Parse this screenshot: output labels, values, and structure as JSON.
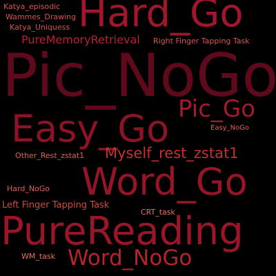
{
  "words": [
    {
      "id": "katya_episodic",
      "text": "Katya_episodic",
      "color": "#d9534f"
    },
    {
      "id": "wammes_drawing",
      "text": "Wammes_Drawing",
      "color": "#d9534f"
    },
    {
      "id": "katya_uniquess",
      "text": "Katya_Uniquess",
      "color": "#d9534f"
    },
    {
      "id": "hard_go",
      "text": "Hard_Go",
      "color": "#a0162d"
    },
    {
      "id": "pure_memory_retrieval",
      "text": "PureMemoryRetrieval",
      "color": "#b8202f"
    },
    {
      "id": "right_finger_tapping",
      "text": "Right Finger Tapping Task",
      "color": "#d9534f"
    },
    {
      "id": "pic_nogo",
      "text": "Pic_NoGo",
      "color": "#5e0a1c"
    },
    {
      "id": "pic_go",
      "text": "Pic_Go",
      "color": "#a51a2a"
    },
    {
      "id": "easy_go",
      "text": "Easy_Go",
      "color": "#8c1226"
    },
    {
      "id": "easy_nogo",
      "text": "Easy_NoGo",
      "color": "#e2604f"
    },
    {
      "id": "other_rest",
      "text": "Other_Rest_zstat1",
      "color": "#e2604f"
    },
    {
      "id": "myself_rest",
      "text": "Myself_rest_zstat1",
      "color": "#c53030"
    },
    {
      "id": "word_go",
      "text": "Word_Go",
      "color": "#961428"
    },
    {
      "id": "hard_nogo",
      "text": "Hard_NoGo",
      "color": "#e2604f"
    },
    {
      "id": "left_finger_tapping",
      "text": "Left Finger Tapping Task",
      "color": "#d04a3e"
    },
    {
      "id": "crt_task",
      "text": "CRT_task",
      "color": "#e87060"
    },
    {
      "id": "pure_reading",
      "text": "PureReading",
      "color": "#9a1528"
    },
    {
      "id": "wm_task",
      "text": "WM_task",
      "color": "#e87060"
    },
    {
      "id": "word_nogo",
      "text": "Word_NoGo",
      "color": "#b3242e"
    }
  ]
}
